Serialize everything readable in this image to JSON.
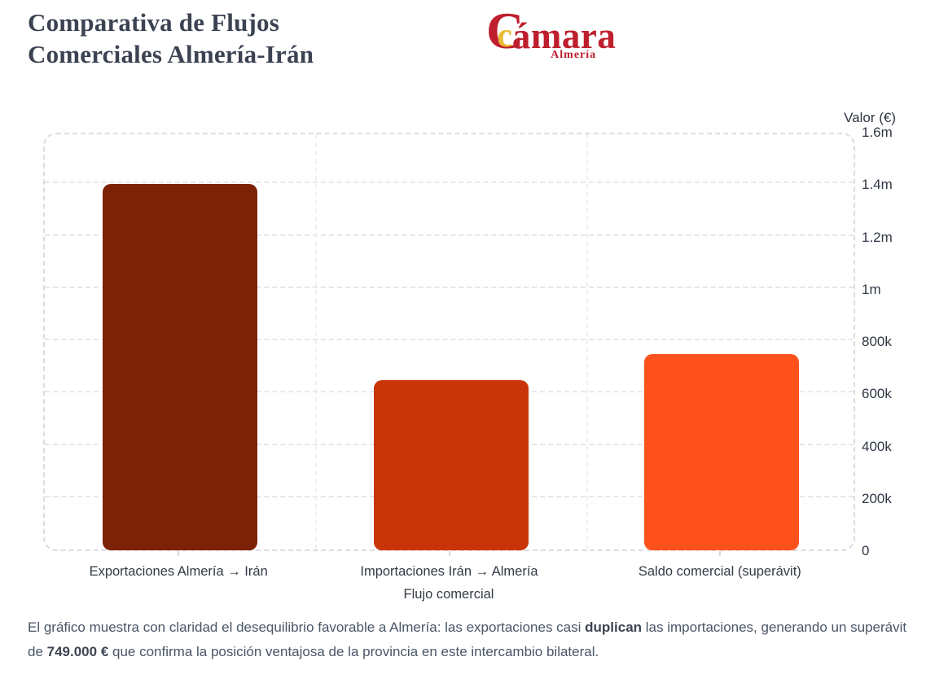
{
  "header": {
    "title_lines": [
      "Comparativa de Flujos",
      "Comerciales Almería-Irán"
    ],
    "logo": {
      "initial": "C",
      "inner": "c",
      "rest": "ámara",
      "subtitle": "Almería",
      "red": "#BE1E2D",
      "yellow": "#E8BC33"
    }
  },
  "chart_data": {
    "type": "bar",
    "categories": [
      "Exportaciones Almería → Irán",
      "Importaciones Irán → Almería",
      "Saldo comercial (superávit)"
    ],
    "values": [
      1400000,
      651000,
      749000
    ],
    "bar_colors": [
      "#7E2205",
      "#C93508",
      "#FE511B"
    ],
    "title": "Comparativa de Flujos Comerciales Almería-Irán",
    "xlabel": "Flujo comercial",
    "ylabel": "Valor (€)",
    "ylim": [
      0,
      1600000
    ],
    "ytick_labels": [
      "0",
      "200k",
      "400k",
      "600k",
      "800k",
      "1m",
      "1.2m",
      "1.4m",
      "1.6m"
    ],
    "grid": "dashed",
    "legend": "none"
  },
  "caption": {
    "segments": [
      {
        "text": "El gráfico muestra con claridad el desequilibrio favorable a Almería: las exportaciones casi ",
        "bold": false
      },
      {
        "text": "duplican",
        "bold": true
      },
      {
        "text": " las importaciones, generando un superávit de ",
        "bold": false
      },
      {
        "text": "749.000 €",
        "bold": true
      },
      {
        "text": " que confirma la posición ventajosa de la provincia en este intercambio bilateral.",
        "bold": false
      }
    ]
  }
}
